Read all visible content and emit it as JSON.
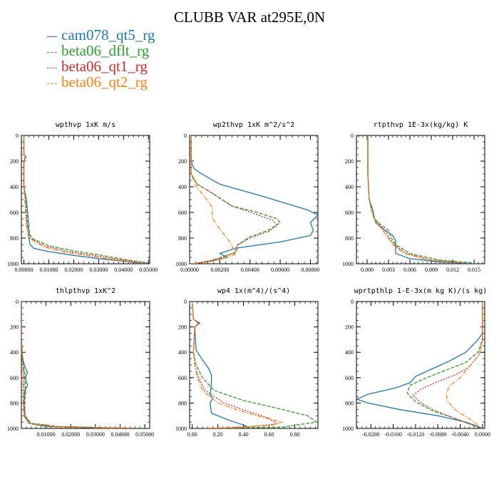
{
  "title": "CLUBB VAR at295E,0N",
  "colors": {
    "cam078_qt5_rg": "#1f77b4",
    "beta06_dflt_rg": "#2ca02c",
    "beta06_qt1_rg": "#d62728",
    "beta06_qt2_rg": "#ff7f0e"
  },
  "legend": [
    {
      "name": "cam078_qt5_rg",
      "color": "#1f77b4",
      "dash": "solid"
    },
    {
      "name": "beta06_dflt_rg",
      "color": "#2ca02c",
      "dash": "dashed"
    },
    {
      "name": "beta06_qt1_rg",
      "color": "#d62728",
      "dash": "dotted"
    },
    {
      "name": "beta06_qt2_rg",
      "color": "#ff7f0e",
      "dash": "dashdot"
    }
  ],
  "chart_data": [
    {
      "type": "line",
      "title": "wpthvp  1xK m/s",
      "xlim": [
        -0.001,
        0.0505
      ],
      "ylim": [
        1000,
        0
      ],
      "xticks": [
        0.0,
        0.01,
        0.02,
        0.03,
        0.04,
        0.05
      ],
      "xticklabels": [
        "0.00000",
        "0.01000",
        "0.02000",
        "0.03000",
        "0.04000",
        "0.05000"
      ],
      "yticks": [
        0,
        200,
        400,
        600,
        800,
        1000
      ],
      "yticklabels": [
        "0",
        "200",
        "400",
        "600",
        "800",
        "1000"
      ],
      "series": [
        {
          "name": "cam078_qt5_rg",
          "x": [
            0,
            0,
            0.0008,
            0,
            0,
            0.001,
            0.0015,
            0.002,
            0.002,
            0.0025,
            0.004,
            0.01,
            0.02,
            0.03,
            0.04,
            0.048
          ],
          "y": [
            0,
            140,
            170,
            200,
            400,
            500,
            600,
            700,
            800,
            850,
            880,
            905,
            935,
            960,
            980,
            1000
          ]
        },
        {
          "name": "beta06_dflt_rg",
          "x": [
            0,
            0,
            0.0006,
            0,
            0,
            0.0008,
            0.001,
            0.0015,
            0.003,
            0.01,
            0.02,
            0.03,
            0.04,
            0.05
          ],
          "y": [
            0,
            140,
            170,
            200,
            400,
            500,
            600,
            700,
            800,
            860,
            900,
            930,
            965,
            995
          ]
        },
        {
          "name": "beta06_qt1_rg",
          "x": [
            0,
            0,
            0.0006,
            0,
            0,
            0.0005,
            0.0008,
            0.0012,
            0.0025,
            0.009,
            0.018,
            0.028,
            0.038,
            0.048
          ],
          "y": [
            0,
            140,
            170,
            200,
            400,
            500,
            600,
            700,
            800,
            865,
            905,
            935,
            965,
            995
          ]
        },
        {
          "name": "beta06_qt2_rg",
          "x": [
            0,
            0,
            0.0006,
            0,
            0,
            0.0004,
            0.0007,
            0.001,
            0.002,
            0.008,
            0.016,
            0.026,
            0.036,
            0.047
          ],
          "y": [
            0,
            140,
            170,
            200,
            400,
            500,
            600,
            700,
            800,
            868,
            908,
            938,
            967,
            995
          ]
        }
      ]
    },
    {
      "type": "line",
      "title": "wp2thvp  1xK m^2/s^2",
      "xlim": [
        0,
        0.0085
      ],
      "ylim": [
        1000,
        0
      ],
      "xticks": [
        0.0,
        0.002,
        0.004,
        0.006,
        0.008
      ],
      "xticklabels": [
        "0.00000",
        "0.00200",
        "0.00400",
        "0.00600",
        "0.00800"
      ],
      "yticks": [
        0,
        200,
        400,
        600,
        800,
        1000
      ],
      "yticklabels": [
        "0",
        "200",
        "400",
        "600",
        "800",
        "1000"
      ],
      "series": [
        {
          "name": "cam078_qt5_rg",
          "x": [
            0.0001,
            0.0001,
            0.0003,
            0.0008,
            0.002,
            0.005,
            0.0078,
            0.0085,
            0.008,
            0.0082,
            0.008,
            0.006,
            0.003,
            0.002,
            0.0025,
            0.0012,
            0.0002
          ],
          "y": [
            0,
            200,
            260,
            300,
            380,
            480,
            580,
            620,
            680,
            740,
            780,
            830,
            880,
            920,
            950,
            985,
            1000
          ]
        },
        {
          "name": "beta06_dflt_rg",
          "x": [
            0.0001,
            0.0001,
            0.0005,
            0.0015,
            0.0028,
            0.0045,
            0.0058,
            0.006,
            0.0052,
            0.004,
            0.0032,
            0.0031,
            0.0015,
            0.0003
          ],
          "y": [
            0,
            300,
            380,
            450,
            550,
            600,
            650,
            680,
            740,
            790,
            850,
            910,
            975,
            1000
          ]
        },
        {
          "name": "beta06_qt1_rg",
          "x": [
            0.0001,
            0.0001,
            0.0005,
            0.0015,
            0.0028,
            0.0043,
            0.0055,
            0.0058,
            0.0052,
            0.004,
            0.0031,
            0.003,
            0.0014,
            0.0003
          ],
          "y": [
            0,
            300,
            380,
            450,
            550,
            610,
            660,
            700,
            750,
            800,
            860,
            915,
            975,
            1000
          ]
        },
        {
          "name": "beta06_qt2_rg",
          "x": [
            0.0001,
            0.0001,
            0.0004,
            0.001,
            0.0015,
            0.0015,
            0.0018,
            0.0022,
            0.0026,
            0.0029,
            0.003,
            0.0015,
            0.0003
          ],
          "y": [
            0,
            300,
            390,
            480,
            560,
            640,
            700,
            760,
            820,
            880,
            930,
            980,
            1000
          ]
        }
      ]
    },
    {
      "type": "line",
      "title": "rtpthvp  1E-3x(kg/kg) K",
      "xlim": [
        -0.0015,
        0.0165
      ],
      "ylim": [
        1000,
        0
      ],
      "xticks": [
        0.0,
        0.003,
        0.006,
        0.009,
        0.012,
        0.015
      ],
      "xticklabels": [
        "0.000",
        "0.003",
        "0.006",
        "0.009",
        "0.012",
        "0.015"
      ],
      "yticks": [
        0,
        200,
        400,
        600,
        800,
        1000
      ],
      "yticklabels": [
        "0",
        "200",
        "400",
        "600",
        "800",
        "1000"
      ],
      "series": [
        {
          "name": "cam078_qt5_rg",
          "x": [
            0.0001,
            0.0001,
            0.0003,
            0.0008,
            0.001,
            0.0012,
            0.002,
            0.0036,
            0.004,
            0.004,
            0.006,
            0.01,
            0.015
          ],
          "y": [
            0,
            300,
            500,
            580,
            640,
            680,
            720,
            780,
            820,
            920,
            960,
            985,
            1000
          ]
        },
        {
          "name": "beta06_dflt_rg",
          "x": [
            0.0001,
            0.0001,
            0.0003,
            0.0006,
            0.001,
            0.002,
            0.003,
            0.0033,
            0.004,
            0.006,
            0.01,
            0.015
          ],
          "y": [
            0,
            300,
            500,
            580,
            650,
            700,
            740,
            790,
            850,
            920,
            970,
            995
          ]
        },
        {
          "name": "beta06_qt1_rg",
          "x": [
            0.0001,
            0.0001,
            0.0003,
            0.0006,
            0.001,
            0.0018,
            0.0025,
            0.003,
            0.0038,
            0.0055,
            0.009,
            0.014
          ],
          "y": [
            0,
            300,
            500,
            580,
            650,
            700,
            740,
            790,
            850,
            920,
            970,
            995
          ]
        },
        {
          "name": "beta06_qt2_rg",
          "x": [
            0.0001,
            0.0001,
            0.0003,
            0.0006,
            0.001,
            0.0016,
            0.0022,
            0.0028,
            0.0036,
            0.0052,
            0.0085,
            0.0135
          ],
          "y": [
            0,
            300,
            500,
            580,
            650,
            700,
            740,
            790,
            850,
            920,
            970,
            995
          ]
        }
      ]
    },
    {
      "type": "line",
      "title": "thlpthvp  1xK^2",
      "xlim": [
        0,
        0.052
      ],
      "ylim": [
        1000,
        0
      ],
      "xticks": [
        0.01,
        0.02,
        0.03,
        0.04,
        0.05
      ],
      "xticklabels": [
        "0.01000",
        "0.02000",
        "0.03000",
        "0.04000",
        "0.05000"
      ],
      "yticks": [
        0,
        200,
        400,
        600,
        800,
        1000
      ],
      "yticklabels": [
        "0",
        "200",
        "400",
        "600",
        "800",
        "1000"
      ],
      "series": [
        {
          "name": "cam078_qt5_rg",
          "x": [
            0,
            0,
            0.0005,
            0.0015,
            0.0025,
            0.0015,
            0.0025,
            0.0015,
            0.001,
            0.0015,
            0.003,
            0.01,
            0.03,
            0.05
          ],
          "y": [
            0,
            300,
            450,
            520,
            560,
            600,
            660,
            700,
            800,
            900,
            960,
            985,
            995,
            1000
          ]
        },
        {
          "name": "beta06_dflt_rg",
          "x": [
            0,
            0,
            0.0005,
            0.001,
            0.0018,
            0.0015,
            0.0018,
            0.0013,
            0.0015,
            0.004,
            0.015,
            0.035,
            0.05
          ],
          "y": [
            0,
            300,
            450,
            530,
            600,
            650,
            700,
            800,
            900,
            960,
            985,
            995,
            1000
          ]
        },
        {
          "name": "beta06_qt1_rg",
          "x": [
            0,
            0,
            0.0004,
            0.0008,
            0.0012,
            0.001,
            0.0012,
            0.001,
            0.0012,
            0.0035,
            0.013,
            0.033,
            0.048
          ],
          "y": [
            0,
            300,
            450,
            530,
            600,
            650,
            700,
            800,
            900,
            960,
            985,
            995,
            1000
          ]
        },
        {
          "name": "beta06_qt2_rg",
          "x": [
            0,
            0,
            0.0003,
            0.0006,
            0.0008,
            0.0007,
            0.0008,
            0.0007,
            0.001,
            0.003,
            0.012,
            0.03,
            0.046
          ],
          "y": [
            0,
            300,
            450,
            530,
            600,
            650,
            700,
            800,
            900,
            960,
            985,
            995,
            1000
          ]
        }
      ]
    },
    {
      "type": "line",
      "title": "wp4  1x(m^4)/(s^4)",
      "xlim": [
        -0.02,
        0.98
      ],
      "ylim": [
        1000,
        0
      ],
      "xticks": [
        0.0,
        0.2,
        0.4,
        0.6,
        0.8
      ],
      "xticklabels": [
        "0.00",
        "0.20",
        "0.40",
        "0.60",
        "0.80"
      ],
      "yticks": [
        0,
        200,
        400,
        600,
        800,
        1000
      ],
      "yticklabels": [
        "0",
        "200",
        "400",
        "600",
        "800",
        "1000"
      ],
      "series": [
        {
          "name": "cam078_qt5_rg",
          "x": [
            0.0,
            0.01,
            0.06,
            0.02,
            0.03,
            0.08,
            0.13,
            0.15,
            0.15,
            0.14,
            0.16,
            0.14,
            0.15,
            0.3,
            0.42,
            0.4,
            0.1
          ],
          "y": [
            0,
            140,
            170,
            200,
            380,
            460,
            530,
            580,
            640,
            740,
            760,
            800,
            880,
            940,
            980,
            995,
            1000
          ]
        },
        {
          "name": "beta06_dflt_rg",
          "x": [
            0.0,
            0.01,
            0.05,
            0.02,
            0.01,
            0.03,
            0.08,
            0.17,
            0.4,
            0.7,
            0.9,
            0.97,
            0.7,
            0.1
          ],
          "y": [
            0,
            140,
            170,
            200,
            400,
            500,
            600,
            700,
            780,
            850,
            900,
            950,
            990,
            1000
          ]
        },
        {
          "name": "beta06_qt1_rg",
          "x": [
            0.0,
            0.01,
            0.05,
            0.02,
            0.01,
            0.02,
            0.05,
            0.1,
            0.25,
            0.45,
            0.6,
            0.66,
            0.4,
            0.1
          ],
          "y": [
            0,
            140,
            170,
            200,
            400,
            500,
            600,
            700,
            800,
            870,
            920,
            965,
            990,
            1000
          ]
        },
        {
          "name": "beta06_qt2_rg",
          "x": [
            0.0,
            0.01,
            0.05,
            0.02,
            0.01,
            0.02,
            0.04,
            0.08,
            0.2,
            0.4,
            0.58,
            0.7,
            0.62,
            0.3,
            0.1
          ],
          "y": [
            0,
            140,
            170,
            200,
            400,
            500,
            600,
            700,
            800,
            870,
            920,
            950,
            975,
            995,
            1000
          ]
        }
      ]
    },
    {
      "type": "line",
      "title": "wprtpthlp  1-E-3x(m kg K)/(s kg)",
      "xlim": [
        -0.0226,
        0.0004
      ],
      "ylim": [
        1000,
        0
      ],
      "xticks": [
        -0.02,
        -0.016,
        -0.012,
        -0.008,
        -0.004,
        0.0
      ],
      "xticklabels": [
        "-0.0200",
        "-0.0160",
        "-0.0120",
        "-0.0080",
        "-0.0040",
        "0.0000"
      ],
      "yticks": [
        0,
        200,
        400,
        600,
        800,
        1000
      ],
      "yticklabels": [
        "0",
        "200",
        "400",
        "600",
        "800",
        "1000"
      ],
      "series": [
        {
          "name": "cam078_qt5_rg",
          "x": [
            0,
            0,
            -0.0008,
            -0.003,
            -0.006,
            -0.0095,
            -0.012,
            -0.013,
            -0.0155,
            -0.0205,
            -0.0225,
            -0.0205,
            -0.015,
            -0.008,
            -0.003,
            -0.0005,
            0
          ],
          "y": [
            0,
            250,
            300,
            400,
            470,
            540,
            590,
            640,
            680,
            730,
            770,
            800,
            850,
            900,
            950,
            990,
            1000
          ]
        },
        {
          "name": "beta06_dflt_rg",
          "x": [
            0,
            0,
            -0.0008,
            -0.003,
            -0.0065,
            -0.01,
            -0.013,
            -0.0135,
            -0.012,
            -0.009,
            -0.005,
            -0.002,
            -0.0003
          ],
          "y": [
            0,
            300,
            400,
            480,
            540,
            600,
            660,
            720,
            790,
            860,
            920,
            970,
            1000
          ]
        },
        {
          "name": "beta06_qt1_rg",
          "x": [
            0,
            0,
            -0.0006,
            -0.0025,
            -0.005,
            -0.0085,
            -0.011,
            -0.0125,
            -0.011,
            -0.0085,
            -0.005,
            -0.002,
            -0.0003
          ],
          "y": [
            0,
            300,
            420,
            520,
            580,
            640,
            690,
            740,
            800,
            860,
            920,
            970,
            1000
          ]
        },
        {
          "name": "beta06_qt2_rg",
          "x": [
            0,
            0,
            -0.0006,
            -0.0025,
            -0.004,
            -0.0058,
            -0.0065,
            -0.0063,
            -0.005,
            -0.0025,
            -0.0008,
            -0.0002
          ],
          "y": [
            0,
            300,
            420,
            520,
            600,
            660,
            720,
            780,
            850,
            920,
            975,
            1000
          ]
        }
      ]
    }
  ]
}
